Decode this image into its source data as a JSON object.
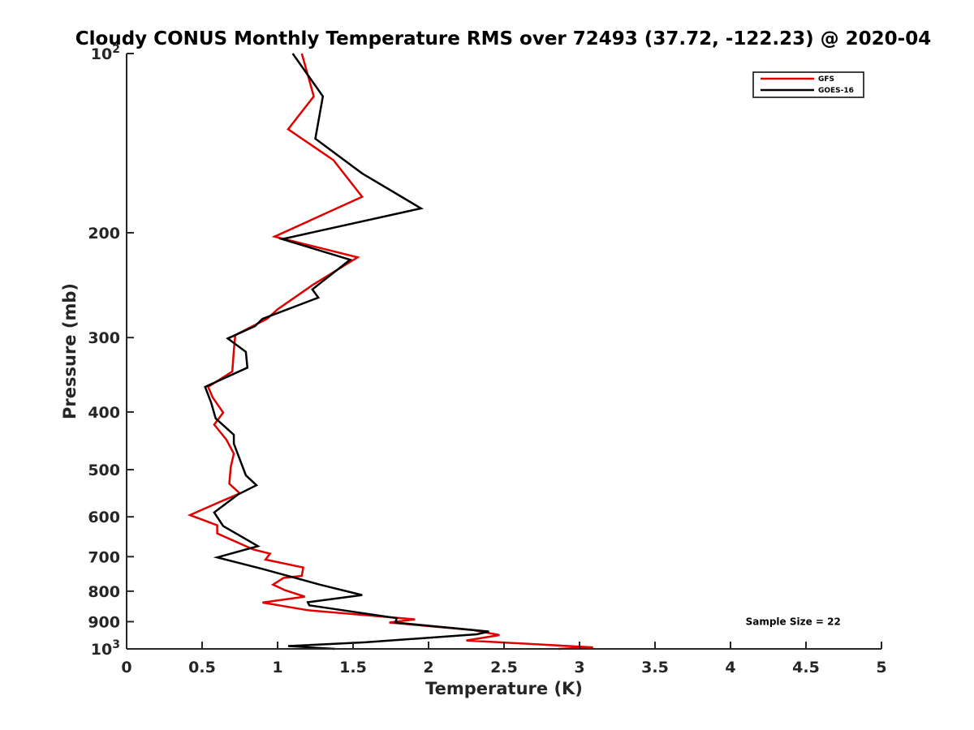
{
  "chart_data": {
    "type": "line",
    "title": "Cloudy CONUS Monthly Temperature RMS over 72493 (37.72, -122.23) @ 2020-04",
    "xlabel": "Temperature (K)",
    "ylabel": "Pressure (mb)",
    "xlim": [
      0,
      5
    ],
    "ylim": [
      100,
      1000
    ],
    "y_scale": "log",
    "y_reversed": true,
    "grid": false,
    "legend_position": "top-right",
    "x_ticks": [
      {
        "value": 0,
        "label": "0"
      },
      {
        "value": 0.5,
        "label": "0.5"
      },
      {
        "value": 1,
        "label": "1"
      },
      {
        "value": 1.5,
        "label": "1.5"
      },
      {
        "value": 2,
        "label": "2"
      },
      {
        "value": 2.5,
        "label": "2.5"
      },
      {
        "value": 3,
        "label": "3"
      },
      {
        "value": 3.5,
        "label": "3.5"
      },
      {
        "value": 4,
        "label": "4"
      },
      {
        "value": 4.5,
        "label": "4.5"
      },
      {
        "value": 5,
        "label": "5"
      }
    ],
    "y_ticks": [
      {
        "value": 100,
        "base": "10",
        "exp": "2"
      },
      {
        "value": 200,
        "label": "200"
      },
      {
        "value": 300,
        "label": "300"
      },
      {
        "value": 400,
        "label": "400"
      },
      {
        "value": 500,
        "label": "500"
      },
      {
        "value": 600,
        "label": "600"
      },
      {
        "value": 700,
        "label": "700"
      },
      {
        "value": 800,
        "label": "800"
      },
      {
        "value": 900,
        "label": "900"
      },
      {
        "value": 1000,
        "base": "10",
        "exp": "3"
      }
    ],
    "series": [
      {
        "name": "GFS",
        "color": "#e00000",
        "points": [
          [
            1.16,
            100
          ],
          [
            1.24,
            118
          ],
          [
            1.07,
            134
          ],
          [
            1.37,
            151
          ],
          [
            1.56,
            174
          ],
          [
            0.98,
            203
          ],
          [
            1.53,
            220
          ],
          [
            1.23,
            245
          ],
          [
            1.0,
            269
          ],
          [
            0.93,
            279
          ],
          [
            0.72,
            297
          ],
          [
            0.71,
            315
          ],
          [
            0.7,
            342
          ],
          [
            0.54,
            363
          ],
          [
            0.57,
            378
          ],
          [
            0.64,
            401
          ],
          [
            0.58,
            420
          ],
          [
            0.66,
            445
          ],
          [
            0.71,
            470
          ],
          [
            0.69,
            495
          ],
          [
            0.68,
            528
          ],
          [
            0.75,
            548
          ],
          [
            0.62,
            566
          ],
          [
            0.42,
            596
          ],
          [
            0.6,
            620
          ],
          [
            0.6,
            640
          ],
          [
            0.84,
            681
          ],
          [
            0.95,
            692
          ],
          [
            0.92,
            708
          ],
          [
            1.17,
            730
          ],
          [
            1.16,
            754
          ],
          [
            1.04,
            760
          ],
          [
            0.97,
            780
          ],
          [
            1.05,
            797
          ],
          [
            1.18,
            817
          ],
          [
            0.9,
            836
          ],
          [
            1.2,
            861
          ],
          [
            1.91,
            892
          ],
          [
            1.74,
            903
          ],
          [
            2.3,
            930
          ],
          [
            2.47,
            948
          ],
          [
            2.25,
            968
          ],
          [
            3.09,
            994
          ],
          [
            2.86,
            1000
          ]
        ]
      },
      {
        "name": "GOES-16",
        "color": "#000000",
        "points": [
          [
            1.1,
            100
          ],
          [
            1.3,
            118
          ],
          [
            1.25,
            139
          ],
          [
            1.56,
            159
          ],
          [
            1.95,
            182
          ],
          [
            1.03,
            205
          ],
          [
            1.48,
            222
          ],
          [
            1.23,
            249
          ],
          [
            1.27,
            257
          ],
          [
            0.9,
            279
          ],
          [
            0.85,
            287
          ],
          [
            0.67,
            301
          ],
          [
            0.79,
            317
          ],
          [
            0.8,
            337
          ],
          [
            0.52,
            363
          ],
          [
            0.56,
            386
          ],
          [
            0.59,
            410
          ],
          [
            0.71,
            437
          ],
          [
            0.71,
            452
          ],
          [
            0.79,
            511
          ],
          [
            0.86,
            531
          ],
          [
            0.74,
            550
          ],
          [
            0.58,
            590
          ],
          [
            0.64,
            622
          ],
          [
            0.87,
            672
          ],
          [
            0.6,
            702
          ],
          [
            0.9,
            734
          ],
          [
            1.28,
            780
          ],
          [
            1.56,
            812
          ],
          [
            1.2,
            835
          ],
          [
            1.21,
            845
          ],
          [
            1.79,
            888
          ],
          [
            1.78,
            903
          ],
          [
            2.4,
            935
          ],
          [
            2.32,
            945
          ],
          [
            1.58,
            975
          ],
          [
            1.07,
            989
          ],
          [
            1.38,
            1000
          ]
        ]
      }
    ],
    "annotations": [
      {
        "text": "Sample Size = 22",
        "x": 4.1,
        "y": 900
      }
    ]
  }
}
